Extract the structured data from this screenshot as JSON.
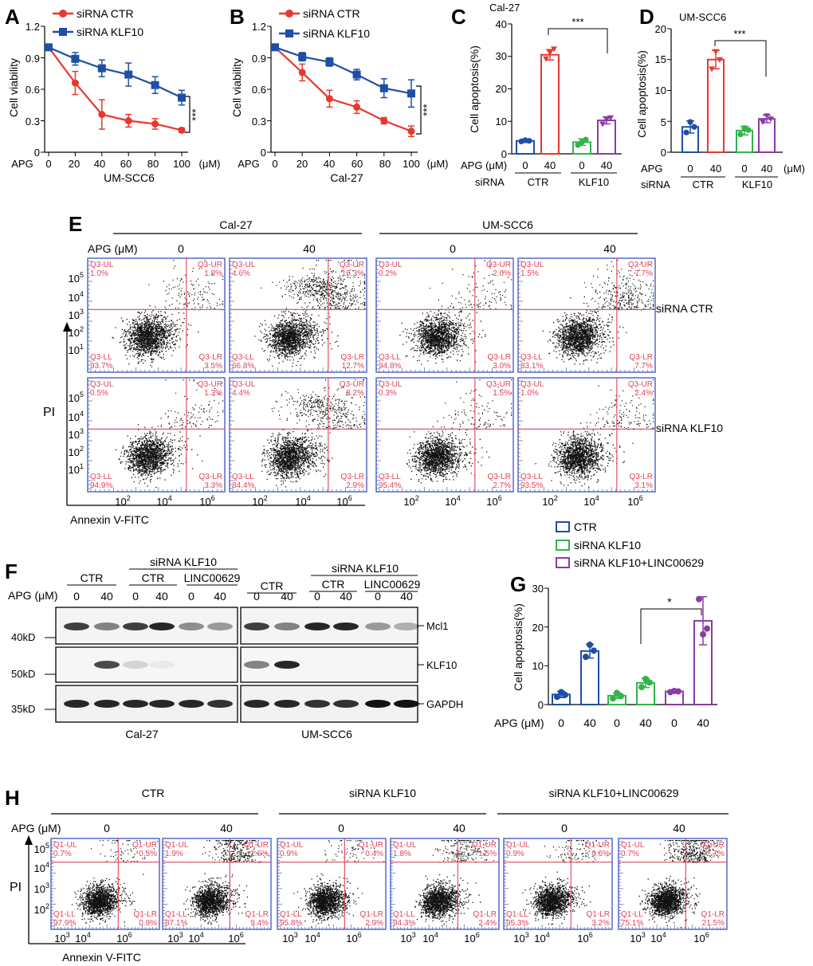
{
  "panels": {
    "A": {
      "letter": "A",
      "legend": [
        "siRNA CTR",
        "siRNA KLF10"
      ],
      "ylabel": "Cell viability",
      "yticks": [
        "0",
        "0.3",
        "0.6",
        "0.9",
        "1.2"
      ],
      "xticks": [
        "0",
        "20",
        "40",
        "60",
        "80",
        "100"
      ],
      "xunit": "(μM)",
      "xprefix": "APG",
      "cell_line": "UM-SCC6",
      "sig": "***"
    },
    "B": {
      "letter": "B",
      "legend": [
        "siRNA CTR",
        "siRNA KLF10"
      ],
      "ylabel": "Cell viability",
      "yticks": [
        "0",
        "0.3",
        "0.6",
        "0.9",
        "1.2"
      ],
      "xticks": [
        "0",
        "20",
        "40",
        "60",
        "80",
        "100"
      ],
      "xunit": "(μM)",
      "xprefix": "APG",
      "cell_line": "Cal-27",
      "sig": "***"
    },
    "C": {
      "letter": "C",
      "title": "Cal-27",
      "ylabel": "Cell apoptosis(%)",
      "yticks": [
        "0",
        "10",
        "20",
        "30",
        "40"
      ],
      "apg_label": "APG (μM)",
      "apg_values": [
        "0",
        "40",
        "0",
        "40"
      ],
      "sirna_label": "siRNA",
      "groups": [
        "CTR",
        "KLF10"
      ],
      "sig": "***"
    },
    "D": {
      "letter": "D",
      "title": "UM-SCC6",
      "ylabel": "Cell apoptosis(%)",
      "yticks": [
        "0",
        "5",
        "10",
        "15",
        "20"
      ],
      "apg_label": "APG",
      "apg_unit": "(μM)",
      "apg_values": [
        "0",
        "40",
        "0",
        "40"
      ],
      "sirna_label": "siRNA",
      "groups": [
        "CTR",
        "KLF10"
      ],
      "sig": "***"
    },
    "E": {
      "letter": "E",
      "cell_lines": [
        "Cal-27",
        "UM-SCC6"
      ],
      "apg_label": "APG (μM)",
      "apg_values": [
        "0",
        "40",
        "0",
        "40"
      ],
      "row_labels": [
        "siRNA  CTR",
        "siRNA KLF10"
      ],
      "yaxis_label": "PI",
      "xaxis_label": "Annexin V-FITC",
      "yticks_exp": [
        "5",
        "4",
        "3",
        "2",
        "1"
      ],
      "xticks_exp": [
        "2",
        "4",
        "6"
      ],
      "tick_base": "10",
      "quadrant_names": [
        "Q3-UL",
        "Q3-UR",
        "Q3-LL",
        "Q3-LR"
      ],
      "plots": [
        {
          "UL": "1.0%",
          "UR": "1.8%",
          "LL": "93.7%",
          "LR": "3.5%"
        },
        {
          "UL": "4.6%",
          "UR": "16.3%",
          "LL": "66.8%",
          "LR": "12.7%"
        },
        {
          "UL": "0.2%",
          "UR": "2.0%",
          "LL": "94.8%",
          "LR": "3.0%"
        },
        {
          "UL": "1.5%",
          "UR": "7.7%",
          "LL": "83.1%",
          "LR": "7.7%"
        },
        {
          "UL": "0.5%",
          "UR": "1.3%",
          "LL": "94.9%",
          "LR": "3.3%"
        },
        {
          "UL": "4.4%",
          "UR": "8.2%",
          "LL": "84.4%",
          "LR": "2.9%"
        },
        {
          "UL": "0.3%",
          "UR": "1.5%",
          "LL": "95.4%",
          "LR": "2.7%"
        },
        {
          "UL": "1.0%",
          "UR": "2.4%",
          "LL": "93.5%",
          "LR": "3.1%"
        }
      ]
    },
    "F": {
      "letter": "F",
      "header_ctr": "CTR",
      "header_sirna": "siRNA  KLF10",
      "sub_ctr": "CTR",
      "sub_linc": "LINC00629",
      "apg_label": "APG (μM)",
      "lanes": [
        "0",
        "40",
        "0",
        "40",
        "0",
        "40"
      ],
      "markers": [
        "40kD",
        "50kD",
        "35kD"
      ],
      "proteins": [
        "Mcl1",
        "KLF10",
        "GAPDH"
      ],
      "cell_lines": [
        "Cal-27",
        "UM-SCC6"
      ]
    },
    "G": {
      "letter": "G",
      "legend": [
        "CTR",
        "siRNA KLF10",
        "siRNA KLF10+LINC00629"
      ],
      "ylabel": "Cell apoptosis(%)",
      "yticks": [
        "0",
        "10",
        "20",
        "30"
      ],
      "apg_label": "APG (μM)",
      "apg_values": [
        "0",
        "40",
        "0",
        "40",
        "0",
        "40"
      ],
      "sig": "*"
    },
    "H": {
      "letter": "H",
      "groups": [
        "CTR",
        "siRNA KLF10",
        "siRNA KLF10+LINC00629"
      ],
      "apg_label": "APG (μM)",
      "apg_values": [
        "0",
        "40",
        "0",
        "40",
        "0",
        "40"
      ],
      "yaxis_label": "PI",
      "xaxis_label": "Annexin V-FITC",
      "yticks_exp": [
        "5",
        "4",
        "3",
        "2"
      ],
      "xticks_exp": [
        "3",
        "4",
        "6"
      ],
      "tick_base": "10",
      "quadrant_names": [
        "Q1-UL",
        "Q1-UR",
        "Q1-LL",
        "Q1-LR"
      ],
      "plots": [
        {
          "UL": "0.7%",
          "UR": "0.5%",
          "LL": "97.9%",
          "LR": "0.9%"
        },
        {
          "UL": "1.9%",
          "UR": "1.6%",
          "LL": "87.1%",
          "LR": "9.4%"
        },
        {
          "UL": "0.9%",
          "UR": "0.4%",
          "LL": "95.8%",
          "LR": "2.9%"
        },
        {
          "UL": "1.8%",
          "UR": "1.5%",
          "LL": "94.3%",
          "LR": "2.4%"
        },
        {
          "UL": "0.9%",
          "UR": "0.6%",
          "LL": "95.3%",
          "LR": "3.2%"
        },
        {
          "UL": "0.7%",
          "UR": "2.7%",
          "LL": "75.1%",
          "LR": "21.5%"
        }
      ]
    }
  },
  "chart_data": [
    {
      "panel": "A",
      "type": "line",
      "title": "UM-SCC6",
      "xlabel": "APG (μM)",
      "ylabel": "Cell viability",
      "x": [
        0,
        20,
        40,
        60,
        80,
        100
      ],
      "ylim": [
        0,
        1.2
      ],
      "series": [
        {
          "name": "siRNA CTR",
          "color": "#e8382e",
          "values": [
            1.0,
            0.66,
            0.36,
            0.3,
            0.27,
            0.21
          ],
          "errors": [
            0.02,
            0.11,
            0.14,
            0.06,
            0.05,
            0.02
          ]
        },
        {
          "name": "siRNA KLF10",
          "color": "#1f4ea6",
          "values": [
            1.0,
            0.89,
            0.8,
            0.74,
            0.64,
            0.52
          ],
          "errors": [
            0.02,
            0.06,
            0.08,
            0.11,
            0.08,
            0.07
          ]
        }
      ]
    },
    {
      "panel": "B",
      "type": "line",
      "title": "Cal-27",
      "xlabel": "APG (μM)",
      "ylabel": "Cell viability",
      "x": [
        0,
        20,
        40,
        60,
        80,
        100
      ],
      "ylim": [
        0,
        1.2
      ],
      "series": [
        {
          "name": "siRNA CTR",
          "color": "#e8382e",
          "values": [
            1.0,
            0.76,
            0.51,
            0.43,
            0.3,
            0.2
          ],
          "errors": [
            0.02,
            0.08,
            0.08,
            0.06,
            0.03,
            0.05
          ]
        },
        {
          "name": "siRNA KLF10",
          "color": "#1f4ea6",
          "values": [
            1.0,
            0.91,
            0.86,
            0.74,
            0.61,
            0.56
          ],
          "errors": [
            0.02,
            0.04,
            0.04,
            0.05,
            0.09,
            0.13
          ]
        }
      ]
    },
    {
      "panel": "C",
      "type": "bar",
      "title": "Cal-27",
      "ylabel": "Cell apoptosis(%)",
      "ylim": [
        0,
        40
      ],
      "categories": [
        "CTR 0",
        "CTR 40",
        "KLF10 0",
        "KLF10 40"
      ],
      "values": [
        4.0,
        30.5,
        3.6,
        10.3
      ],
      "errors": [
        0.5,
        1.6,
        1.0,
        1.1
      ],
      "points": [
        [
          3.8,
          4.2,
          4.0
        ],
        [
          29.3,
          31.2,
          32.3
        ],
        [
          2.7,
          3.6,
          4.4
        ],
        [
          9.2,
          10.6,
          11.1
        ]
      ],
      "colors": [
        "#1f4ea6",
        "#e8382e",
        "#33b34a",
        "#8b3ba6"
      ]
    },
    {
      "panel": "D",
      "type": "bar",
      "title": "UM-SCC6",
      "ylabel": "Cell apoptosis(%)",
      "ylim": [
        0,
        20
      ],
      "categories": [
        "CTR 0",
        "CTR 40",
        "KLF10 0",
        "KLF10 40"
      ],
      "values": [
        4.1,
        15.0,
        3.5,
        5.4
      ],
      "errors": [
        1.0,
        1.5,
        0.7,
        0.6
      ],
      "points": [
        [
          3.2,
          4.9,
          4.1
        ],
        [
          13.5,
          16.3,
          15.0
        ],
        [
          2.9,
          3.9,
          3.6
        ],
        [
          4.9,
          5.9,
          5.4
        ]
      ],
      "colors": [
        "#1f4ea6",
        "#e8382e",
        "#33b34a",
        "#8b3ba6"
      ]
    },
    {
      "panel": "G",
      "type": "bar",
      "ylabel": "Cell apoptosis(%)",
      "ylim": [
        0,
        30
      ],
      "categories": [
        "CTR 0",
        "CTR 40",
        "siRNA KLF10 0",
        "siRNA KLF10 40",
        "siRNA KLF10+LINC00629 0",
        "siRNA KLF10+LINC00629 40"
      ],
      "values": [
        2.6,
        13.8,
        2.3,
        5.6,
        3.4,
        21.6
      ],
      "errors": [
        0.8,
        1.8,
        0.7,
        1.2,
        0.3,
        6.2
      ],
      "points": [
        [
          2.0,
          3.2,
          2.5
        ],
        [
          12.3,
          15.4,
          13.9
        ],
        [
          1.6,
          3.0,
          2.2
        ],
        [
          4.5,
          6.6,
          5.7
        ],
        [
          3.2,
          3.5,
          3.4
        ],
        [
          27.2,
          18.1,
          19.6
        ]
      ],
      "colors": [
        "#1f4ea6",
        "#1f4ea6",
        "#33b34a",
        "#33b34a",
        "#8b3ba6",
        "#8b3ba6"
      ]
    }
  ]
}
